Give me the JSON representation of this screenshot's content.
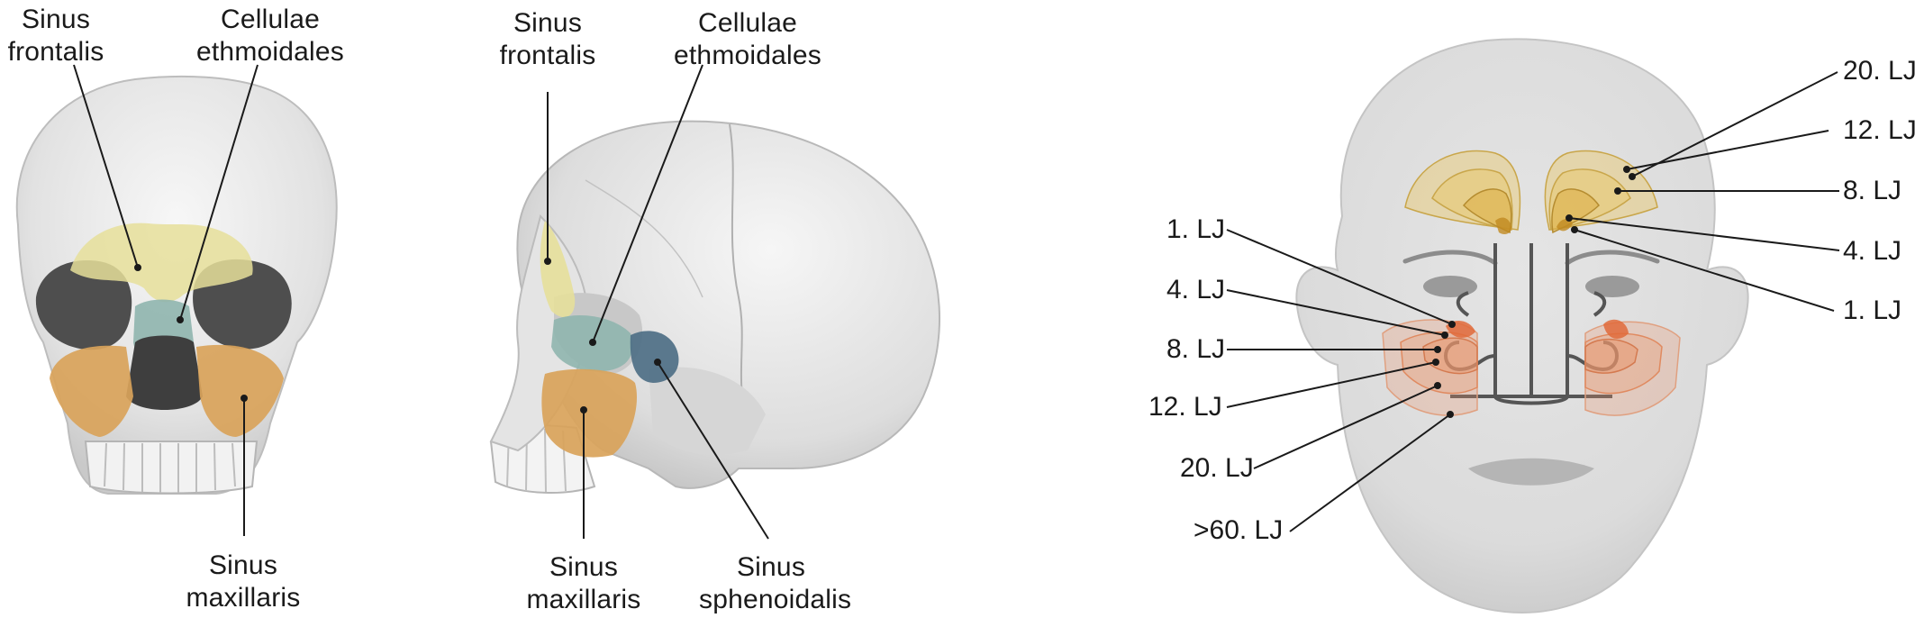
{
  "panels": {
    "frontal": {
      "labels": {
        "sinus_frontalis": [
          "Sinus",
          "frontalis"
        ],
        "cellulae_ethmoidales": [
          "Cellulae",
          "ethmoidales"
        ],
        "sinus_maxillaris": [
          "Sinus",
          "maxillaris"
        ]
      }
    },
    "lateral": {
      "labels": {
        "sinus_frontalis": [
          "Sinus",
          "frontalis"
        ],
        "cellulae_ethmoidales": [
          "Cellulae",
          "ethmoidales"
        ],
        "sinus_maxillaris": [
          "Sinus",
          "maxillaris"
        ],
        "sinus_sphenoidalis": [
          "Sinus",
          "sphenoidalis"
        ]
      }
    },
    "development": {
      "right_labels": [
        "20. LJ",
        "12. LJ",
        "8. LJ",
        "4. LJ",
        "1. LJ"
      ],
      "left_labels": [
        "1. LJ",
        "4. LJ",
        "8. LJ",
        "12. LJ",
        "20. LJ",
        ">60. LJ"
      ]
    }
  },
  "colors": {
    "frontal_sinus": "#e6df9a",
    "ethmoid_cells": "#8fb5ae",
    "maxillary_sinus": "#d9a35a",
    "sphenoid_sinus": "#4e6f86",
    "frontal_stages": "#e8c86a",
    "maxillary_stages": "#e8956a",
    "bone": "#ececec",
    "leader_line": "#1a1a1a"
  }
}
